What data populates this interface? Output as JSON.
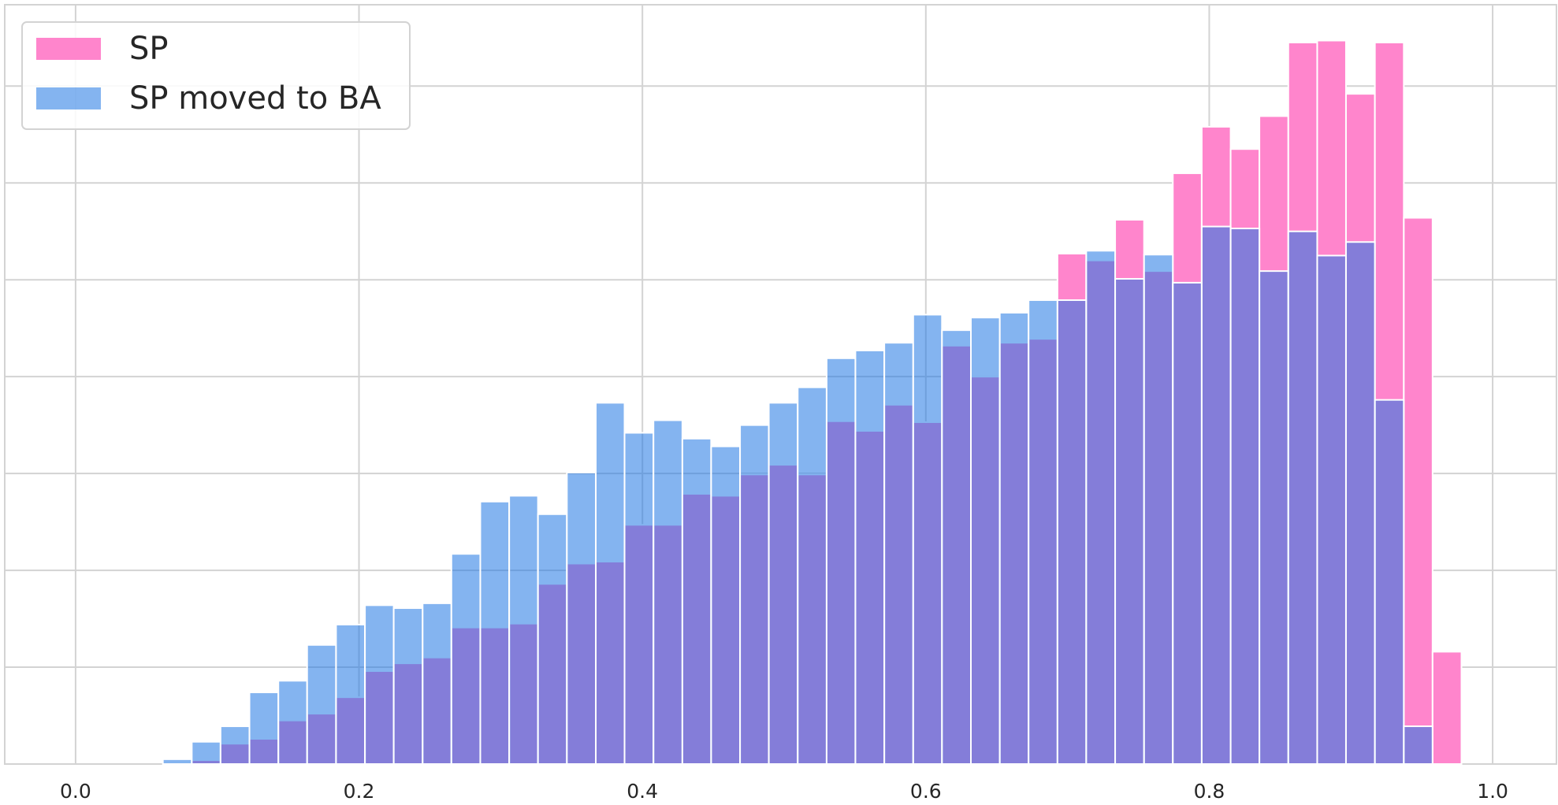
{
  "chart_data": {
    "type": "histogram",
    "bins": [
      0.0616,
      0.082,
      0.1023,
      0.1227,
      0.1431,
      0.1634,
      0.1838,
      0.2042,
      0.2245,
      0.2449,
      0.2652,
      0.2856,
      0.306,
      0.3263,
      0.3467,
      0.3671,
      0.3874,
      0.4078,
      0.4282,
      0.4485,
      0.4689,
      0.4892,
      0.5096,
      0.53,
      0.5503,
      0.5707,
      0.5911,
      0.6114,
      0.6318,
      0.6522,
      0.6725,
      0.6929,
      0.7132,
      0.7336,
      0.754,
      0.7743,
      0.7947,
      0.8151,
      0.8354,
      0.8558,
      0.8762,
      0.8965,
      0.9169,
      0.9373,
      0.9576,
      0.978
    ],
    "series": [
      {
        "name": "SP",
        "color": "#ff85cc",
        "values": [
          0,
          0.04,
          0.21,
          0.26,
          0.45,
          0.52,
          0.69,
          0.96,
          1.04,
          1.1,
          1.41,
          1.41,
          1.45,
          1.86,
          2.07,
          2.09,
          2.47,
          2.47,
          2.79,
          2.77,
          2.99,
          3.09,
          2.99,
          3.54,
          3.44,
          3.71,
          3.53,
          4.32,
          4.0,
          4.35,
          4.39,
          5.27,
          5.2,
          5.62,
          5.09,
          6.1,
          6.58,
          6.35,
          6.69,
          7.45,
          7.47,
          6.92,
          7.45,
          5.64,
          1.16
        ]
      },
      {
        "name": "SP moved to BA",
        "color": "#1f77e4",
        "values": [
          0.05,
          0.23,
          0.39,
          0.74,
          0.86,
          1.23,
          1.44,
          1.64,
          1.61,
          1.66,
          2.17,
          2.71,
          2.77,
          2.58,
          3.01,
          3.73,
          3.42,
          3.55,
          3.36,
          3.28,
          3.5,
          3.73,
          3.89,
          4.19,
          4.27,
          4.35,
          4.64,
          4.48,
          4.61,
          4.66,
          4.79,
          4.79,
          5.3,
          5.01,
          5.26,
          4.97,
          5.55,
          5.53,
          5.09,
          5.5,
          5.25,
          5.39,
          3.76,
          0.39,
          0
        ]
      }
    ],
    "xlim": [
      -0.05,
      1.045
    ],
    "xticks": [
      {
        "value": 0,
        "label": "0.0"
      },
      {
        "value": 0.2,
        "label": "0.2"
      },
      {
        "value": 0.4,
        "label": "0.4"
      },
      {
        "value": 0.6,
        "label": "0.6"
      },
      {
        "value": 0.8,
        "label": "0.8"
      },
      {
        "value": 1,
        "label": "1.0"
      }
    ],
    "ylim": [
      0,
      7.84
    ],
    "yticks": [
      0,
      1,
      2,
      3,
      4,
      5,
      6,
      7
    ],
    "grid": true,
    "legend": "upper left"
  }
}
